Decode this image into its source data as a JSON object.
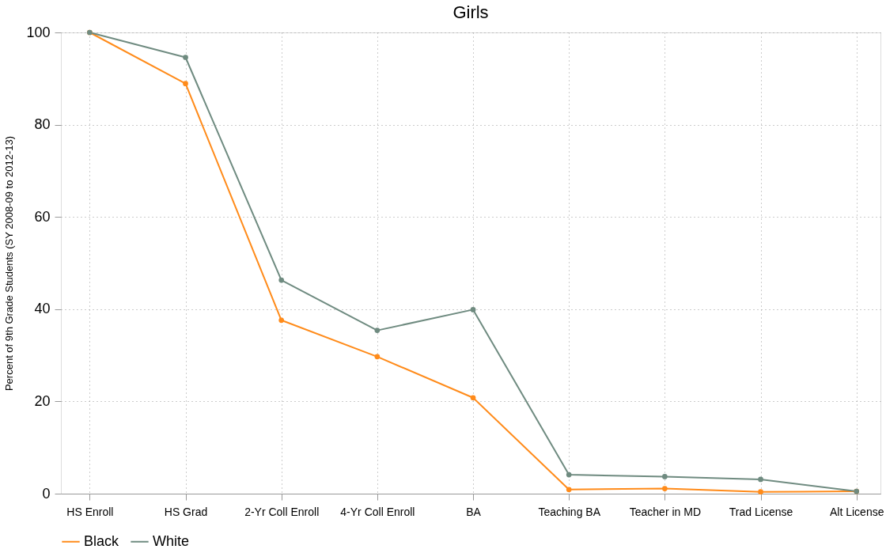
{
  "chart_data": {
    "type": "line",
    "title": "Girls",
    "ylabel": "Percent of 9th Grade Students (SY 2008-09 to 2012-13)",
    "categories": [
      "HS Enroll",
      "HS Grad",
      "2-Yr Coll Enroll",
      "4-Yr Coll Enroll",
      "BA",
      "Teaching BA",
      "Teacher in MD",
      "Trad License",
      "Alt License"
    ],
    "series": [
      {
        "name": "Black",
        "color": "#ff8b1a",
        "values": [
          100,
          88.9,
          37.6,
          29.7,
          20.8,
          0.9,
          1.1,
          0.4,
          0.5
        ]
      },
      {
        "name": "White",
        "color": "#6f8b80",
        "values": [
          100,
          94.6,
          46.3,
          35.4,
          39.9,
          4.1,
          3.7,
          3.1,
          0.5
        ]
      }
    ],
    "ylim": [
      0,
      100
    ],
    "yticks": [
      0,
      20,
      40,
      60,
      80,
      100
    ],
    "grid": true,
    "legend": "bottom",
    "marker": "circle",
    "line_style": "solid"
  }
}
